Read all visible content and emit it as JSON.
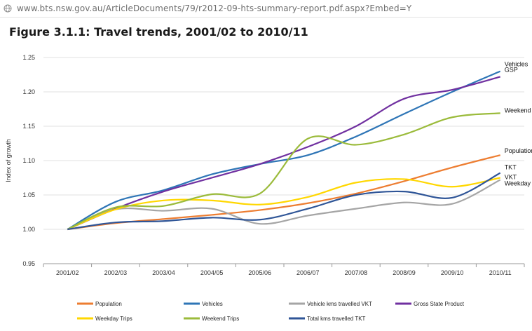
{
  "browser": {
    "url": "www.bts.nsw.gov.au/ArticleDocuments/79/r2012-09-hts-summary-report.pdf.aspx?Embed=Y",
    "icon": "globe-icon"
  },
  "figure_title": "Figure 3.1.1: Travel trends, 2001/02 to 2010/11",
  "chart_data": {
    "type": "line",
    "title": "Figure 3.1.1: Travel trends, 2001/02 to 2010/11",
    "xlabel": "",
    "ylabel": "Index of growth",
    "ylim": [
      0.95,
      1.25
    ],
    "yticks": [
      "0.95",
      "1.00",
      "1.05",
      "1.10",
      "1.15",
      "1.20",
      "1.25"
    ],
    "categories": [
      "2001/02",
      "2002/03",
      "2003/04",
      "2004/05",
      "2005/06",
      "2006/07",
      "2007/08",
      "2008/09",
      "2009/10",
      "2010/11"
    ],
    "grid": "horizontal",
    "legend_position": "bottom",
    "series": [
      {
        "name": "Population",
        "end_label": "Population",
        "color": "#ED7D31",
        "values": [
          1.0,
          1.009,
          1.015,
          1.021,
          1.028,
          1.038,
          1.052,
          1.07,
          1.09,
          1.108
        ]
      },
      {
        "name": "Vehicles",
        "end_label": "Vehicles",
        "color": "#2E75B6",
        "values": [
          1.0,
          1.04,
          1.057,
          1.08,
          1.095,
          1.108,
          1.135,
          1.168,
          1.2,
          1.23
        ]
      },
      {
        "name": "Vehicle kms travelled VKT",
        "end_label": "VKT",
        "color": "#A5A5A5",
        "values": [
          1.0,
          1.029,
          1.027,
          1.03,
          1.008,
          1.02,
          1.03,
          1.039,
          1.037,
          1.072
        ]
      },
      {
        "name": "Gross State Product",
        "end_label": "GSP",
        "color": "#7030A0",
        "values": [
          1.0,
          1.03,
          1.055,
          1.075,
          1.095,
          1.12,
          1.15,
          1.19,
          1.203,
          1.222
        ]
      },
      {
        "name": "Weekday Trips",
        "end_label": "Weekday trips",
        "color": "#FFD700",
        "values": [
          1.0,
          1.029,
          1.042,
          1.042,
          1.036,
          1.047,
          1.068,
          1.073,
          1.062,
          1.075
        ]
      },
      {
        "name": "Weekend Trips",
        "end_label": "Weekend trips",
        "color": "#9BBB3B",
        "values": [
          1.0,
          1.032,
          1.034,
          1.051,
          1.052,
          1.132,
          1.123,
          1.138,
          1.163,
          1.169
        ]
      },
      {
        "name": "Total kms travelled TKT",
        "end_label": "TKT",
        "color": "#2F5597",
        "values": [
          1.0,
          1.01,
          1.012,
          1.017,
          1.014,
          1.03,
          1.05,
          1.055,
          1.046,
          1.082
        ]
      }
    ]
  }
}
